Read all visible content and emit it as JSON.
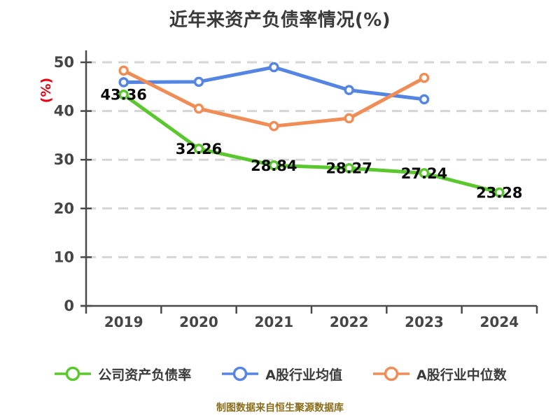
{
  "colors": {
    "title": "#3A3A3A",
    "ylabel": "#E60012",
    "footer": "#8A6D1A",
    "axis": "#4A4A4A",
    "grid": "#D5D5D5",
    "tick_label": "#454545",
    "value_label": "#0A0A0A"
  },
  "footer": {
    "text": "制图数据来自恒生聚源数据库"
  },
  "chart_data": {
    "type": "line",
    "title": "近年来资产负债率情况(%)",
    "ylabel": "(%)",
    "xlabel": "",
    "categories": [
      "2019",
      "2020",
      "2021",
      "2022",
      "2023",
      "2024"
    ],
    "ylim": [
      0,
      50
    ],
    "yticks": [
      0,
      10,
      20,
      30,
      40,
      50
    ],
    "grid": "horizontal-dashed",
    "legend_position": "bottom",
    "series": [
      {
        "name": "公司资产负债率",
        "color": "#5BC72E",
        "values": [
          43.36,
          32.26,
          28.84,
          28.27,
          27.24,
          23.28
        ],
        "point_labels_shown": true
      },
      {
        "name": "A股行业均值",
        "color": "#5585E2",
        "values": [
          45.9,
          46.0,
          49.0,
          44.3,
          42.4
        ],
        "point_labels_shown": false
      },
      {
        "name": "A股行业中位数",
        "color": "#F08C55",
        "values": [
          48.3,
          40.5,
          36.9,
          38.5,
          46.8
        ],
        "point_labels_shown": false
      }
    ]
  }
}
